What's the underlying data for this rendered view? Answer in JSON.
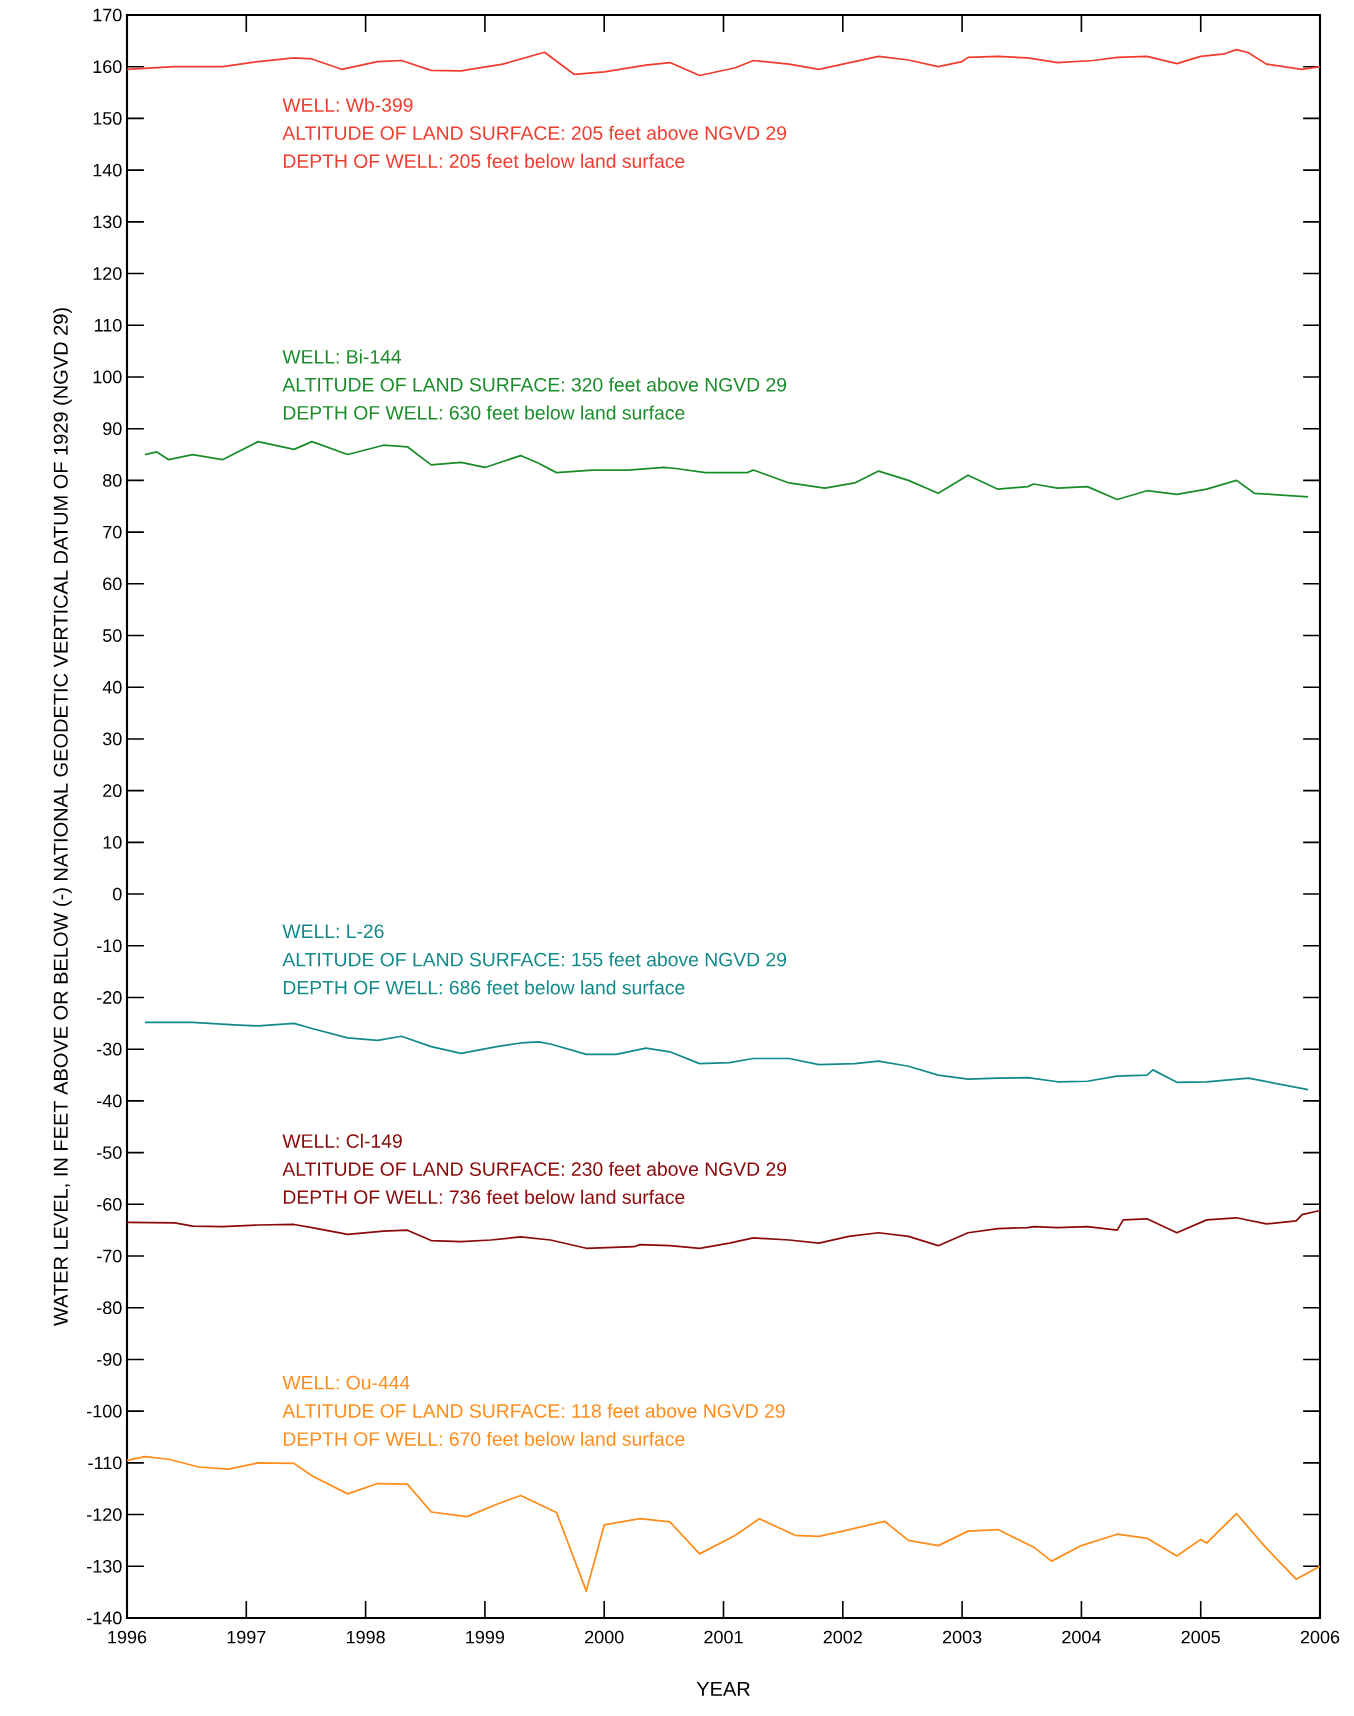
{
  "chart_data": {
    "type": "line",
    "xlabel": "YEAR",
    "ylabel": "WATER LEVEL, IN FEET ABOVE OR BELOW (-) NATIONAL GEODETIC VERTICAL DATUM OF 1929 (NGVD 29)",
    "xlim": [
      1996,
      2006
    ],
    "ylim": [
      -140,
      170
    ],
    "xticks": [
      1996,
      1997,
      1998,
      1999,
      2000,
      2001,
      2002,
      2003,
      2004,
      2005,
      2006
    ],
    "yticks": [
      -140,
      -130,
      -120,
      -110,
      -100,
      -90,
      -80,
      -70,
      -60,
      -50,
      -40,
      -30,
      -20,
      -10,
      0,
      10,
      20,
      30,
      40,
      50,
      60,
      70,
      80,
      90,
      100,
      110,
      120,
      130,
      140,
      150,
      160,
      170
    ],
    "series": [
      {
        "color": "#f03c2e",
        "x": [
          1996.0,
          1996.4,
          1996.8,
          1997.1,
          1997.4,
          1997.55,
          1997.8,
          1998.1,
          1998.3,
          1998.55,
          1998.8,
          1999.15,
          1999.5,
          1999.75,
          2000.0,
          2000.35,
          2000.55,
          2000.8,
          2001.1,
          2001.25,
          2001.55,
          2001.8,
          2002.0,
          2002.3,
          2002.55,
          2002.8,
          2003.0,
          2003.05,
          2003.3,
          2003.55,
          2003.8,
          2004.1,
          2004.3,
          2004.55,
          2004.8,
          2005.0,
          2005.2,
          2005.3,
          2005.4,
          2005.55,
          2005.85,
          2006.0
        ],
        "values": [
          159.5,
          160,
          160,
          161,
          161.7,
          161.5,
          159.5,
          161,
          161.2,
          159.3,
          159.2,
          160.5,
          162.8,
          158.5,
          159,
          160.3,
          160.8,
          158.3,
          159.8,
          161.2,
          160.5,
          159.5,
          160.5,
          162,
          161.3,
          160,
          161,
          161.8,
          162,
          161.7,
          160.8,
          161.2,
          161.8,
          162,
          160.6,
          162,
          162.5,
          163.3,
          162.7,
          160.5,
          159.5,
          160
        ]
      },
      {
        "color": "#1a8c2a",
        "x": [
          1996.15,
          1996.25,
          1996.35,
          1996.55,
          1996.8,
          1997.1,
          1997.4,
          1997.55,
          1997.85,
          1998.15,
          1998.35,
          1998.55,
          1998.8,
          1999.0,
          1999.3,
          1999.45,
          1999.6,
          1999.9,
          2000.2,
          2000.5,
          2000.6,
          2000.85,
          2001.2,
          2001.25,
          2001.55,
          2001.85,
          2002.1,
          2002.3,
          2002.55,
          2002.8,
          2003.05,
          2003.3,
          2003.55,
          2003.6,
          2003.8,
          2004.05,
          2004.3,
          2004.55,
          2004.8,
          2005.05,
          2005.3,
          2005.45,
          2005.65,
          2005.9
        ],
        "values": [
          85,
          85.5,
          84,
          85,
          84,
          87.5,
          86,
          87.5,
          85,
          86.8,
          86.5,
          83,
          83.5,
          82.5,
          84.8,
          83.3,
          81.5,
          82,
          82,
          82.5,
          82.3,
          81.5,
          81.5,
          82,
          79.5,
          78.5,
          79.5,
          81.8,
          80,
          77.5,
          81,
          78.3,
          78.8,
          79.3,
          78.5,
          78.8,
          76.3,
          78,
          77.3,
          78.3,
          80,
          77.5,
          77.2,
          76.8
        ]
      },
      {
        "color": "#138a8a",
        "x": [
          1996.15,
          1996.55,
          1996.9,
          1997.1,
          1997.4,
          1997.55,
          1997.85,
          1998.1,
          1998.3,
          1998.55,
          1998.8,
          1999.1,
          1999.3,
          1999.45,
          1999.55,
          1999.85,
          2000.1,
          2000.35,
          2000.55,
          2000.8,
          2001.05,
          2001.25,
          2001.55,
          2001.8,
          2002.1,
          2002.3,
          2002.55,
          2002.8,
          2003.05,
          2003.3,
          2003.55,
          2003.8,
          2004.05,
          2004.3,
          2004.55,
          2004.6,
          2004.8,
          2005.05,
          2005.4,
          2005.9
        ],
        "values": [
          -24.8,
          -24.8,
          -25.3,
          -25.5,
          -25,
          -26,
          -27.8,
          -28.3,
          -27.5,
          -29.5,
          -30.8,
          -29.5,
          -28.8,
          -28.6,
          -29,
          -31,
          -31,
          -29.8,
          -30.5,
          -32.8,
          -32.6,
          -31.8,
          -31.8,
          -33,
          -32.8,
          -32.3,
          -33.3,
          -35,
          -35.8,
          -35.6,
          -35.5,
          -36.3,
          -36.2,
          -35.2,
          -35,
          -34,
          -36.4,
          -36.3,
          -35.6,
          -37.8
        ]
      },
      {
        "color": "#8b0a0a",
        "x": [
          1996.0,
          1996.4,
          1996.55,
          1996.8,
          1997.1,
          1997.4,
          1997.55,
          1997.85,
          1998.15,
          1998.35,
          1998.55,
          1998.8,
          1999.05,
          1999.3,
          1999.55,
          1999.85,
          2000.25,
          2000.3,
          2000.55,
          2000.8,
          2001.05,
          2001.25,
          2001.55,
          2001.8,
          2002.05,
          2002.3,
          2002.55,
          2002.8,
          2003.05,
          2003.3,
          2003.55,
          2003.6,
          2003.8,
          2004.05,
          2004.3,
          2004.35,
          2004.55,
          2004.8,
          2005.05,
          2005.3,
          2005.55,
          2005.8,
          2005.85,
          2006.0
        ],
        "values": [
          -63.5,
          -63.6,
          -64.2,
          -64.3,
          -64,
          -63.9,
          -64.5,
          -65.8,
          -65.2,
          -65,
          -67,
          -67.2,
          -66.9,
          -66.3,
          -66.9,
          -68.5,
          -68.2,
          -67.8,
          -68,
          -68.5,
          -67.5,
          -66.5,
          -66.9,
          -67.5,
          -66.2,
          -65.5,
          -66.2,
          -68,
          -65.5,
          -64.7,
          -64.5,
          -64.3,
          -64.5,
          -64.3,
          -65,
          -63,
          -62.8,
          -65.5,
          -63,
          -62.6,
          -63.8,
          -63.2,
          -62,
          -61.2
        ]
      },
      {
        "color": "#ff8c1a",
        "x": [
          1996.0,
          1996.15,
          1996.35,
          1996.6,
          1996.85,
          1997.1,
          1997.4,
          1997.55,
          1997.85,
          1998.1,
          1998.35,
          1998.55,
          1998.85,
          1999.1,
          1999.3,
          1999.6,
          1999.85,
          2000.0,
          2000.3,
          2000.55,
          2000.8,
          2001.1,
          2001.3,
          2001.6,
          2001.8,
          2002.0,
          2002.35,
          2002.55,
          2002.8,
          2003.05,
          2003.3,
          2003.6,
          2003.75,
          2004.0,
          2004.3,
          2004.55,
          2004.8,
          2005.0,
          2005.05,
          2005.3,
          2005.55,
          2005.8,
          2006.0
        ],
        "values": [
          -109.5,
          -108.8,
          -109.3,
          -110.8,
          -111.2,
          -110,
          -110.1,
          -112.5,
          -116,
          -114,
          -114.1,
          -119.5,
          -120.4,
          -118,
          -116.3,
          -119.6,
          -134.8,
          -122,
          -120.8,
          -121.4,
          -127.6,
          -124,
          -120.8,
          -124,
          -124.2,
          -123.2,
          -121.3,
          -125,
          -126,
          -123.2,
          -122.9,
          -126.3,
          -129,
          -126,
          -123.8,
          -124.6,
          -128,
          -124.8,
          -125.5,
          -119.8,
          -126.5,
          -132.5,
          -130
        ]
      }
    ],
    "annotations": [
      "WELL:  Wb-399",
      "ALTITUDE OF LAND SURFACE: 205 feet above NGVD 29",
      "DEPTH OF WELL: 205 feet below land surface",
      "WELL:  Bi-144",
      "ALTITUDE OF LAND SURFACE: 320 feet above NGVD 29",
      "DEPTH OF WELL: 630 feet below land surface",
      "WELL:  L-26",
      "ALTITUDE OF LAND SURFACE: 155 feet above NGVD 29",
      "DEPTH OF WELL: 686 feet below land surface",
      "WELL:  Cl-149",
      "ALTITUDE OF LAND SURFACE: 230 feet above NGVD 29",
      "DEPTH OF WELL: 736 feet below land surface",
      "WELL:  Ou-444",
      "ALTITUDE OF LAND SURFACE: 118 feet above NGVD 29",
      "DEPTH OF WELL: 670 feet below land surface"
    ]
  }
}
